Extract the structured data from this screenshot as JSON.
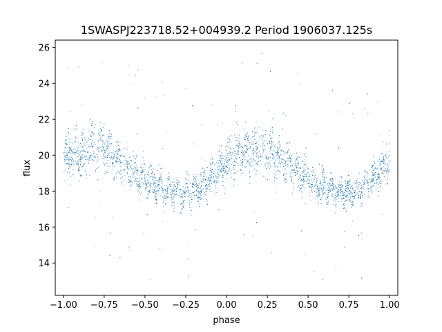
{
  "chart_data": {
    "type": "scatter",
    "title": "1SWASPJ223718.52+004939.2 Period 1906037.125s",
    "xlabel": "phase",
    "ylabel": "flux",
    "xlim": [
      -1.05,
      1.05
    ],
    "ylim": [
      12.2,
      26.4
    ],
    "xticks": [
      -1.0,
      -0.75,
      -0.5,
      -0.25,
      0.0,
      0.25,
      0.5,
      0.75,
      1.0
    ],
    "xtick_labels": [
      "−1.00",
      "−0.75",
      "−0.50",
      "−0.25",
      "0.00",
      "0.25",
      "0.50",
      "0.75",
      "1.00"
    ],
    "yticks": [
      14,
      16,
      18,
      20,
      22,
      24,
      26
    ],
    "ytick_labels": [
      "14",
      "16",
      "18",
      "20",
      "22",
      "24",
      "26"
    ],
    "grid": false,
    "legend": "none",
    "marker_color": "#1f77b4",
    "x": [
      -1.0,
      -0.95,
      -0.9,
      -0.85,
      -0.8,
      -0.75,
      -0.7,
      -0.65,
      -0.6,
      -0.55,
      -0.5,
      -0.45,
      -0.4,
      -0.35,
      -0.3,
      -0.25,
      -0.2,
      -0.15,
      -0.1,
      -0.05,
      0.0,
      0.05,
      0.1,
      0.15,
      0.2,
      0.25,
      0.3,
      0.35,
      0.4,
      0.45,
      0.5,
      0.55,
      0.6,
      0.65,
      0.7,
      0.75,
      0.8,
      0.85,
      0.9,
      0.95,
      1.0
    ],
    "y": [
      19.8,
      20.2,
      20.0,
      20.3,
      20.5,
      20.4,
      20.0,
      19.6,
      19.3,
      19.0,
      18.7,
      18.4,
      18.2,
      18.0,
      17.9,
      17.9,
      18.1,
      18.4,
      18.7,
      19.2,
      19.6,
      20.0,
      20.2,
      20.3,
      20.5,
      20.4,
      20.0,
      19.7,
      19.3,
      19.0,
      18.7,
      18.4,
      18.2,
      18.0,
      17.9,
      17.9,
      18.1,
      18.4,
      18.7,
      19.2,
      19.6
    ],
    "scatter_halfwidth": [
      1.2,
      1.3,
      1.3,
      1.4,
      1.4,
      1.4,
      1.3,
      1.2,
      1.1,
      1.0,
      0.9,
      0.9,
      0.9,
      0.8,
      0.8,
      0.8,
      0.9,
      1.0,
      1.0,
      1.1,
      1.2,
      1.3,
      1.3,
      1.4,
      1.4,
      1.4,
      1.3,
      1.2,
      1.1,
      1.0,
      0.9,
      0.9,
      0.9,
      0.8,
      0.8,
      0.8,
      0.9,
      1.0,
      1.0,
      1.1,
      1.2
    ]
  }
}
